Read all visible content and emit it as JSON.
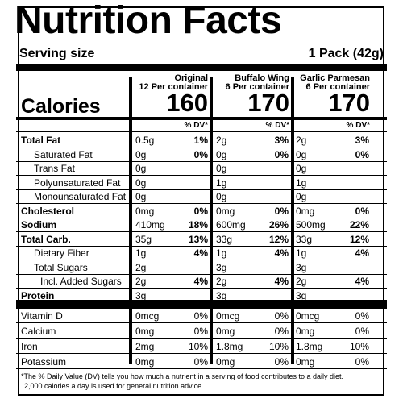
{
  "title": "Nutrition Facts",
  "serving": {
    "label": "Serving size",
    "value": "1 Pack (42g)"
  },
  "columns": [
    {
      "line1": "Original",
      "line2": "12 Per container",
      "calories": "160"
    },
    {
      "line1": "Buffalo Wing",
      "line2": "6 Per container",
      "calories": "170"
    },
    {
      "line1": "Garlic Parmesan",
      "line2": "6 Per container",
      "calories": "170"
    }
  ],
  "calories_label": "Calories",
  "dv_header": "% DV*",
  "rows": [
    {
      "label": "Total Fat",
      "bold": true,
      "indent": false,
      "vals": [
        [
          "0.5g",
          "1%"
        ],
        [
          "2g",
          "3%"
        ],
        [
          "2g",
          "3%"
        ]
      ]
    },
    {
      "label": "Saturated Fat",
      "bold": false,
      "indent": true,
      "vals": [
        [
          "0g",
          "0%"
        ],
        [
          "0g",
          "0%"
        ],
        [
          "0g",
          "0%"
        ]
      ]
    },
    {
      "label": "Trans Fat",
      "bold": false,
      "indent": true,
      "vals": [
        [
          "0g",
          ""
        ],
        [
          "0g",
          ""
        ],
        [
          "0g",
          ""
        ]
      ]
    },
    {
      "label": "Polyunsaturated Fat",
      "bold": false,
      "indent": true,
      "vals": [
        [
          "0g",
          ""
        ],
        [
          "1g",
          ""
        ],
        [
          "1g",
          ""
        ]
      ]
    },
    {
      "label": "Monounsaturated Fat",
      "bold": false,
      "indent": true,
      "vals": [
        [
          "0g",
          ""
        ],
        [
          "0g",
          ""
        ],
        [
          "0g",
          ""
        ]
      ]
    },
    {
      "label": "Cholesterol",
      "bold": true,
      "indent": false,
      "vals": [
        [
          "0mg",
          "0%"
        ],
        [
          "0mg",
          "0%"
        ],
        [
          "0mg",
          "0%"
        ]
      ]
    },
    {
      "label": "Sodium",
      "bold": true,
      "indent": false,
      "vals": [
        [
          "410mg",
          "18%"
        ],
        [
          "600mg",
          "26%"
        ],
        [
          "500mg",
          "22%"
        ]
      ]
    },
    {
      "label": "Total Carb.",
      "bold": true,
      "indent": false,
      "vals": [
        [
          "35g",
          "13%"
        ],
        [
          "33g",
          "12%"
        ],
        [
          "33g",
          "12%"
        ]
      ]
    },
    {
      "label": "Dietary Fiber",
      "bold": false,
      "indent": true,
      "vals": [
        [
          "1g",
          "4%"
        ],
        [
          "1g",
          "4%"
        ],
        [
          "1g",
          "4%"
        ]
      ]
    },
    {
      "label": "Total Sugars",
      "bold": false,
      "indent": true,
      "vals": [
        [
          "2g",
          ""
        ],
        [
          "3g",
          ""
        ],
        [
          "3g",
          ""
        ]
      ]
    },
    {
      "label": "Incl. Added Sugars",
      "bold": false,
      "indent": true,
      "extraIndent": true,
      "vals": [
        [
          "2g",
          "4%"
        ],
        [
          "2g",
          "4%"
        ],
        [
          "2g",
          "4%"
        ]
      ]
    },
    {
      "label": "Protein",
      "bold": true,
      "indent": false,
      "vals": [
        [
          "3g",
          ""
        ],
        [
          "3g",
          ""
        ],
        [
          "3g",
          ""
        ]
      ]
    }
  ],
  "vitamins": [
    {
      "label": "Vitamin D",
      "vals": [
        [
          "0mcg",
          "0%"
        ],
        [
          "0mcg",
          "0%"
        ],
        [
          "0mcg",
          "0%"
        ]
      ]
    },
    {
      "label": "Calcium",
      "vals": [
        [
          "0mg",
          "0%"
        ],
        [
          "0mg",
          "0%"
        ],
        [
          "0mg",
          "0%"
        ]
      ]
    },
    {
      "label": "Iron",
      "vals": [
        [
          "2mg",
          "10%"
        ],
        [
          "1.8mg",
          "10%"
        ],
        [
          "1.8mg",
          "10%"
        ]
      ]
    },
    {
      "label": "Potassium",
      "vals": [
        [
          "0mg",
          "0%"
        ],
        [
          "0mg",
          "0%"
        ],
        [
          "0mg",
          "0%"
        ]
      ]
    }
  ],
  "footnote_line1": "*The % Daily Value (DV) tells you how much a nutrient in a serving of food contributes to a daily diet.",
  "footnote_line2": "2,000 calories a day is used for general nutrition advice."
}
